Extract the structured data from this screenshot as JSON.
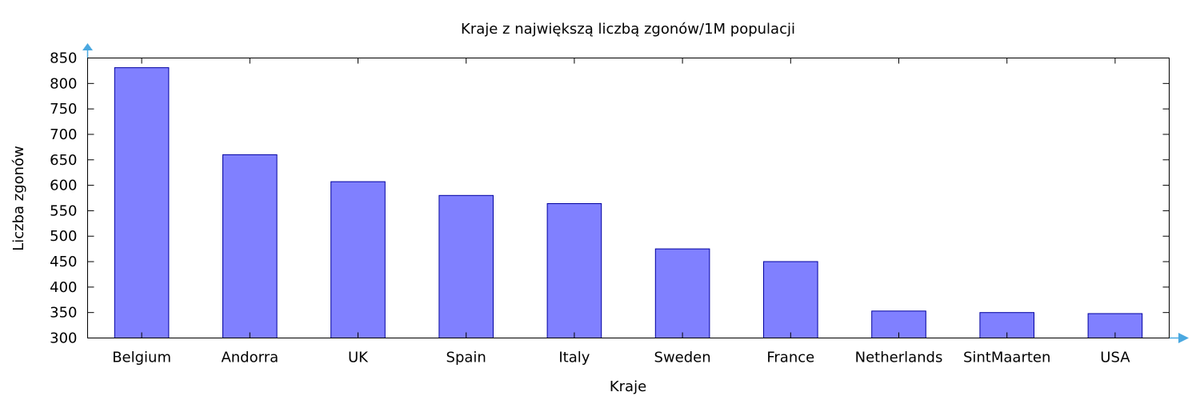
{
  "colors": {
    "bar_fill": "#8080ff",
    "bar_stroke": "#0000a0",
    "arrow": "#4aa8e0"
  },
  "chart_data": {
    "type": "bar",
    "title": "Kraje z największą liczbą zgonów/1M populacji",
    "xlabel": "Kraje",
    "ylabel": "Liczba zgonów",
    "categories": [
      "Belgium",
      "Andorra",
      "UK",
      "Spain",
      "Italy",
      "Sweden",
      "France",
      "Netherlands",
      "SintMaarten",
      "USA"
    ],
    "values": [
      831,
      660,
      607,
      580,
      564,
      475,
      450,
      353,
      350,
      348
    ],
    "ylim": [
      300,
      850
    ],
    "yticks": [
      300,
      350,
      400,
      450,
      500,
      550,
      600,
      650,
      700,
      750,
      800,
      850
    ],
    "grid": false,
    "legend": "none"
  }
}
